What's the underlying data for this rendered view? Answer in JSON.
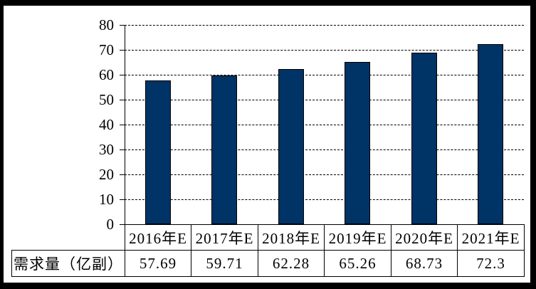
{
  "chart_data": {
    "type": "bar",
    "title": "",
    "xlabel": "",
    "ylabel": "",
    "categories": [
      "2016年E",
      "2017年E",
      "2018年E",
      "2019年E",
      "2020年E",
      "2021年E"
    ],
    "series": [
      {
        "name": "需求量（亿副）",
        "values": [
          57.69,
          59.71,
          62.28,
          65.26,
          68.73,
          72.3
        ]
      }
    ],
    "ylim": [
      0,
      80
    ],
    "ytick_interval": 10,
    "ytick_labels": [
      "80",
      "70",
      "60",
      "50",
      "40",
      "30",
      "20",
      "10",
      "0"
    ],
    "grid": "horizontal-dashed",
    "legend_position": "none",
    "colors": {
      "bar_fill": "#003366",
      "bar_border": "#000000",
      "gridline": "#000000",
      "axis": "#000000",
      "text": "#000000",
      "background": "#ffffff",
      "frame": "#000000"
    }
  },
  "table": {
    "row_header": "需求量（亿副）",
    "column_headers": [
      "2016年E",
      "2017年E",
      "2018年E",
      "2019年E",
      "2020年E",
      "2021年E"
    ],
    "values": [
      "57.69",
      "59.71",
      "62.28",
      "65.26",
      "68.73",
      "72.3"
    ]
  }
}
